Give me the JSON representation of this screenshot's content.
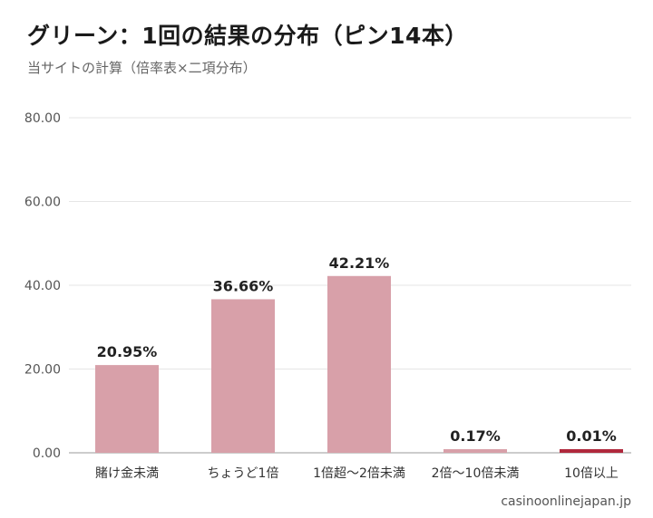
{
  "title": "グリーン：1回の結果の分布（ピン14本）",
  "subtitle": "当サイトの計算（倍率表×二項分布）",
  "source": "casinoonlinejapan.jp",
  "colors": {
    "bar": "#d8a0a9",
    "highlight_bar": "#b0283c",
    "grid": "#e6e6e6",
    "axis": "#999999"
  },
  "chart_data": {
    "type": "bar",
    "categories": [
      "賭け金未満",
      "ちょうど1倍",
      "1倍超〜2倍未満",
      "2倍〜10倍未満",
      "10倍以上"
    ],
    "values": [
      20.95,
      36.66,
      42.21,
      0.17,
      0.01
    ],
    "value_labels": [
      "20.95%",
      "36.66%",
      "42.21%",
      "0.17%",
      "0.01%"
    ],
    "y_ticks": [
      "0.00",
      "20.00",
      "40.00",
      "60.00",
      "80.00"
    ],
    "ylim": [
      0,
      80
    ],
    "highlight_index": 4,
    "grid": true,
    "xlabel": "",
    "ylabel": ""
  }
}
